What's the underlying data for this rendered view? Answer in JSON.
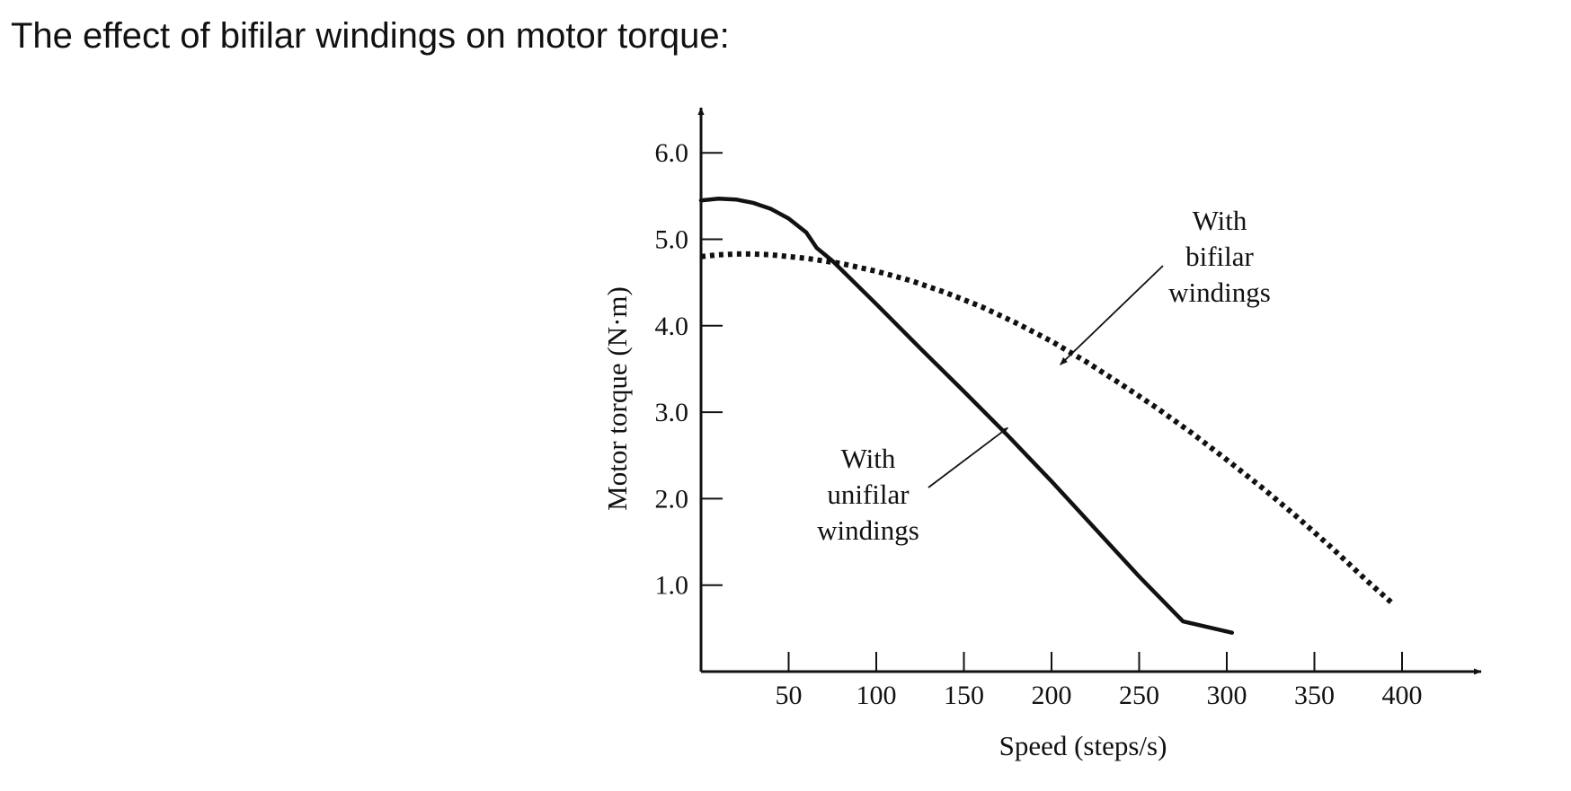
{
  "page": {
    "title": "The effect of bifilar windings on motor torque:"
  },
  "chart_data": {
    "type": "line",
    "title": "",
    "xlabel": "Speed (steps/s)",
    "ylabel": "Motor torque (N·m)",
    "xlim": [
      0,
      440
    ],
    "ylim": [
      0,
      6.2
    ],
    "x_ticks": [
      50,
      100,
      150,
      200,
      250,
      300,
      350,
      400
    ],
    "x_tick_labels": [
      "50",
      "100",
      "150",
      "200",
      "250",
      "300",
      "350",
      "400"
    ],
    "y_ticks": [
      1.0,
      2.0,
      3.0,
      4.0,
      5.0,
      6.0
    ],
    "y_tick_labels": [
      "1.0",
      "2.0",
      "3.0",
      "4.0",
      "5.0",
      "6.0"
    ],
    "grid": false,
    "legend": "none",
    "series": [
      {
        "style": "solid",
        "x": [
          0,
          10,
          20,
          30,
          40,
          50,
          60,
          66,
          75,
          100,
          125,
          150,
          175,
          200,
          225,
          250,
          275,
          303
        ],
        "y": [
          5.45,
          5.47,
          5.46,
          5.42,
          5.35,
          5.24,
          5.08,
          4.9,
          4.75,
          4.25,
          3.74,
          3.24,
          2.73,
          2.2,
          1.65,
          1.1,
          0.58,
          0.45
        ]
      },
      {
        "style": "dotted",
        "x": [
          0,
          10,
          20,
          30,
          40,
          50,
          60,
          70,
          80,
          100,
          120,
          140,
          160,
          180,
          200,
          220,
          240,
          260,
          280,
          300,
          320,
          340,
          360,
          380,
          395
        ],
        "y": [
          4.8,
          4.82,
          4.83,
          4.83,
          4.82,
          4.8,
          4.78,
          4.75,
          4.72,
          4.63,
          4.52,
          4.38,
          4.22,
          4.03,
          3.82,
          3.58,
          3.32,
          3.05,
          2.76,
          2.45,
          2.13,
          1.79,
          1.43,
          1.05,
          0.78
        ]
      }
    ],
    "annotations": [
      {
        "lines": [
          "With",
          "bifilar",
          "windings"
        ],
        "points_to": "dotted",
        "arrow_target": [
          205,
          3.55
        ]
      },
      {
        "lines": [
          "With",
          "unifilar",
          "windings"
        ],
        "points_to": "solid",
        "arrow_target": [
          175,
          2.82
        ]
      }
    ],
    "colors": {
      "ink": "#111111"
    }
  }
}
